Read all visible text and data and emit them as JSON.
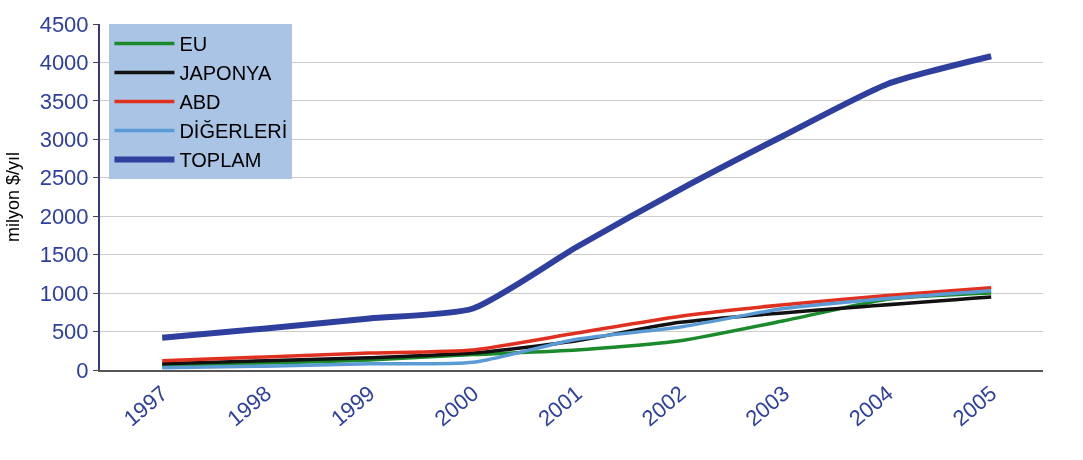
{
  "chart_data": {
    "type": "line",
    "ylabel": "milyon $/yıl",
    "categories": [
      "1997",
      "1998",
      "1999",
      "2000",
      "2001",
      "2002",
      "2003",
      "2004",
      "2005"
    ],
    "series": [
      {
        "name": "EU",
        "color": "#1a8a2a",
        "values": [
          60,
          90,
          130,
          200,
          260,
          380,
          640,
          920,
          1000
        ]
      },
      {
        "name": "JAPONYA",
        "color": "#111111",
        "values": [
          80,
          120,
          160,
          220,
          380,
          620,
          null,
          null,
          950
        ]
      },
      {
        "name": "ABD",
        "color": "#e03020",
        "values": [
          120,
          170,
          220,
          260,
          480,
          700,
          850,
          970,
          1070
        ]
      },
      {
        "name": "DİĞERLERİ",
        "color": "#5b9bd5",
        "values": [
          30,
          50,
          80,
          100,
          400,
          560,
          800,
          930,
          1030
        ]
      },
      {
        "name": "TOPLAM",
        "color": "#2e3f9e",
        "values": [
          420,
          540,
          670,
          800,
          1600,
          2350,
          3050,
          3720,
          4080
        ]
      }
    ],
    "ylim": [
      0,
      4500
    ],
    "yticks": [
      0,
      500,
      1000,
      1500,
      2000,
      2500,
      3000,
      3500,
      4000,
      4500
    ],
    "grid": "y",
    "legend": "top left",
    "marker": "none",
    "line_style": "solid"
  }
}
